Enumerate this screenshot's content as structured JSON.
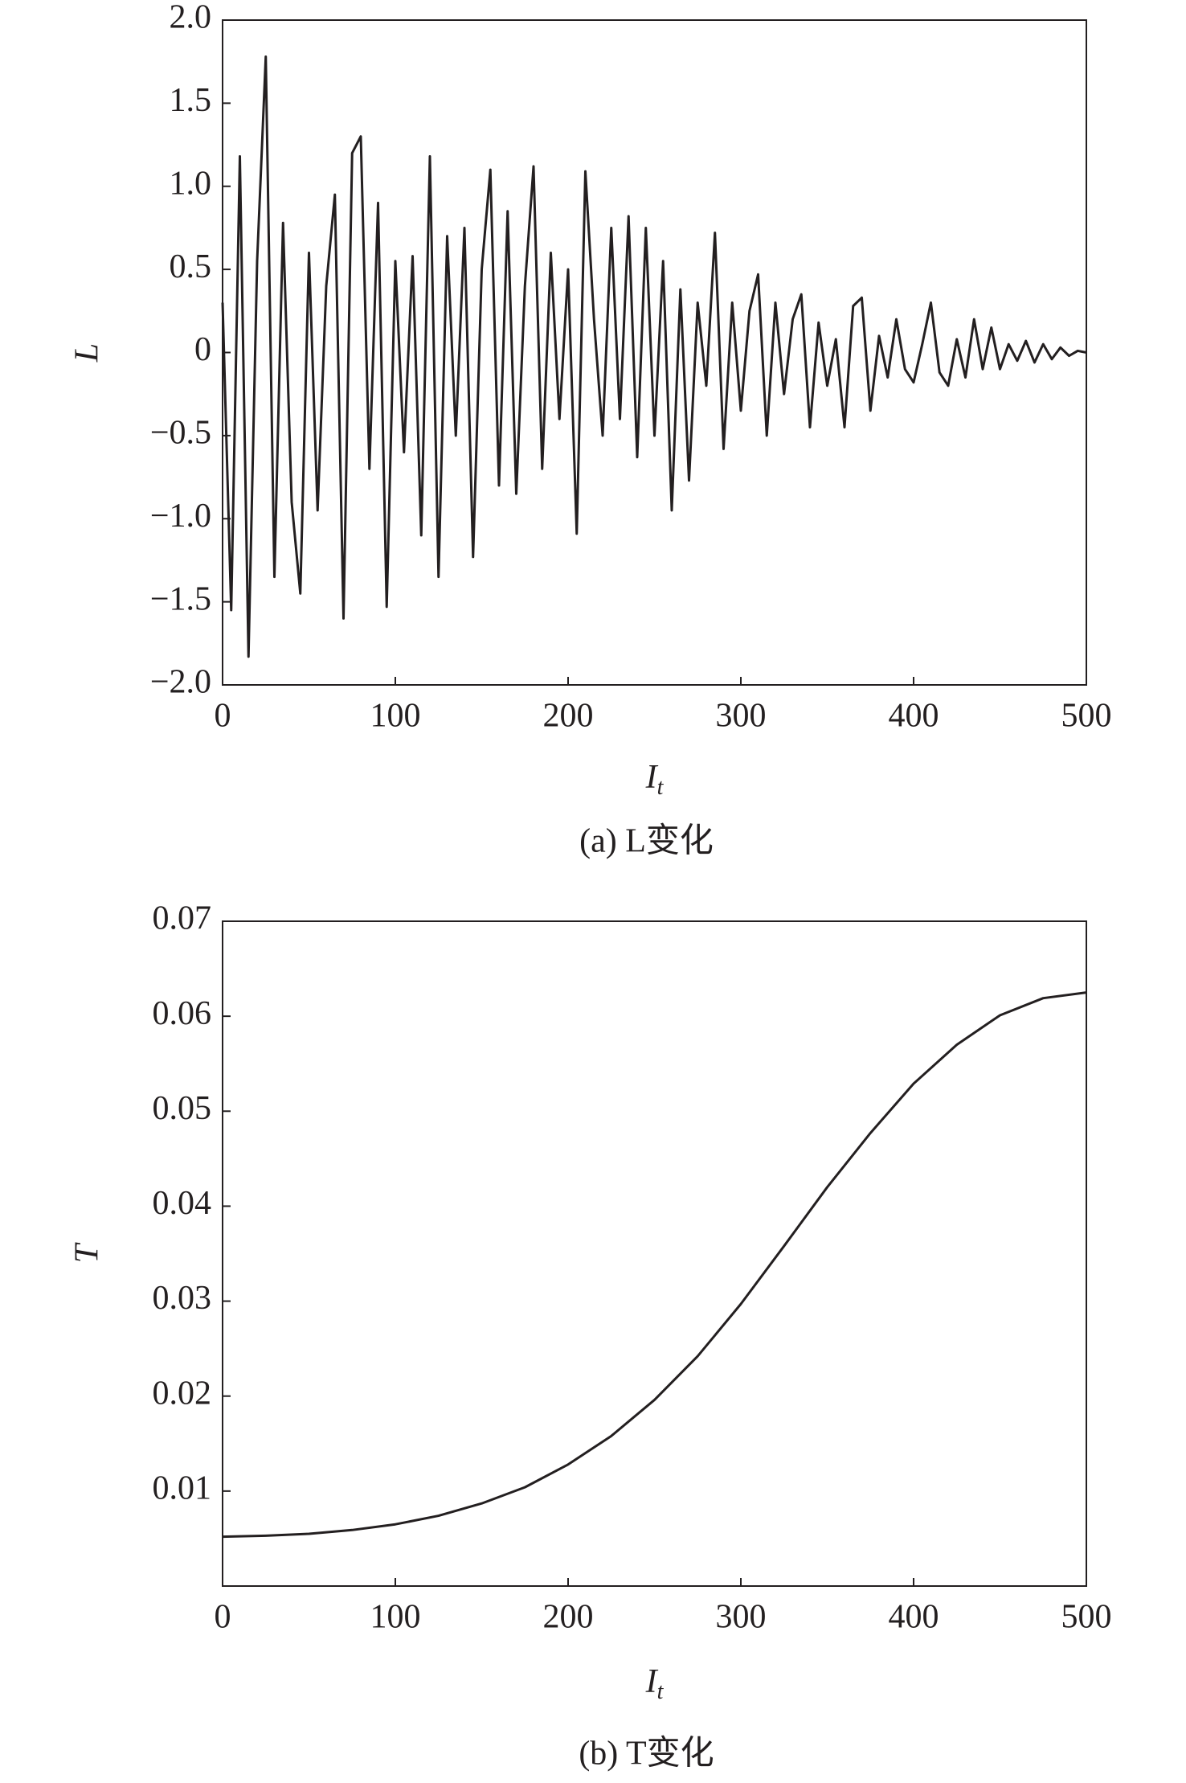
{
  "chart_data": [
    {
      "type": "line",
      "caption": "(a) L变化",
      "ylabel": "L",
      "xlabel": "I",
      "xlabel_sub": "t",
      "color": "#231f20",
      "xlim": [
        0,
        500
      ],
      "xticks": [
        0,
        100,
        200,
        300,
        400,
        500
      ],
      "ylim": [
        -2,
        2
      ],
      "yticks": [
        {
          "value": -2,
          "label": "−2.0"
        },
        {
          "value": -1.5,
          "label": "−1.5"
        },
        {
          "value": -1,
          "label": "−1.0"
        },
        {
          "value": -0.5,
          "label": "−0.5"
        },
        0,
        {
          "value": 0.5,
          "label": "0.5"
        },
        {
          "value": 1,
          "label": "1.0"
        },
        {
          "value": 1.5,
          "label": "1.5"
        },
        {
          "value": 2,
          "label": "2.0"
        }
      ],
      "x": [
        0,
        5,
        10,
        15,
        20,
        25,
        30,
        35,
        40,
        45,
        50,
        55,
        60,
        65,
        70,
        75,
        80,
        85,
        90,
        95,
        100,
        105,
        110,
        115,
        120,
        125,
        130,
        135,
        140,
        145,
        150,
        155,
        160,
        165,
        170,
        175,
        180,
        185,
        190,
        195,
        200,
        205,
        210,
        215,
        220,
        225,
        230,
        235,
        240,
        245,
        250,
        255,
        260,
        265,
        270,
        275,
        280,
        285,
        290,
        295,
        300,
        305,
        310,
        315,
        320,
        325,
        330,
        335,
        340,
        345,
        350,
        355,
        360,
        365,
        370,
        375,
        380,
        385,
        390,
        395,
        400,
        405,
        410,
        415,
        420,
        425,
        430,
        435,
        440,
        445,
        450,
        455,
        460,
        465,
        470,
        475,
        480,
        485,
        490,
        495,
        500
      ],
      "values": [
        0.3,
        -1.55,
        1.18,
        -1.83,
        0.55,
        1.78,
        -1.35,
        0.78,
        -0.9,
        -1.45,
        0.6,
        -0.95,
        0.4,
        0.95,
        -1.6,
        1.2,
        1.3,
        -0.7,
        0.9,
        -1.53,
        0.55,
        -0.6,
        0.58,
        -1.1,
        1.18,
        -1.35,
        0.7,
        -0.5,
        0.75,
        -1.23,
        0.5,
        1.1,
        -0.8,
        0.85,
        -0.85,
        0.4,
        1.12,
        -0.7,
        0.6,
        -0.4,
        0.5,
        -1.09,
        1.09,
        0.2,
        -0.5,
        0.75,
        -0.4,
        0.82,
        -0.63,
        0.75,
        -0.5,
        0.55,
        -0.95,
        0.38,
        -0.77,
        0.3,
        -0.2,
        0.72,
        -0.58,
        0.3,
        -0.35,
        0.25,
        0.47,
        -0.5,
        0.3,
        -0.25,
        0.2,
        0.35,
        -0.45,
        0.18,
        -0.2,
        0.08,
        -0.45,
        0.28,
        0.33,
        -0.35,
        0.1,
        -0.15,
        0.2,
        -0.1,
        -0.18,
        0.05,
        0.3,
        -0.12,
        -0.2,
        0.08,
        -0.15,
        0.2,
        -0.1,
        0.15,
        -0.1,
        0.05,
        -0.05,
        0.07,
        -0.06,
        0.05,
        -0.04,
        0.03,
        -0.02,
        0.01,
        0
      ]
    },
    {
      "type": "line",
      "caption": "(b) T变化",
      "ylabel": "T",
      "xlabel": "I",
      "xlabel_sub": "t",
      "color": "#231f20",
      "xlim": [
        0,
        500
      ],
      "xticks": [
        0,
        100,
        200,
        300,
        400,
        500
      ],
      "ylim": [
        0,
        0.07
      ],
      "yticks": [
        0.01,
        0.02,
        0.03,
        0.04,
        0.05,
        0.06,
        0.07
      ],
      "x": [
        0,
        25,
        50,
        75,
        100,
        125,
        150,
        175,
        200,
        225,
        250,
        275,
        300,
        325,
        350,
        375,
        400,
        425,
        450,
        475,
        500
      ],
      "values": [
        0.0052,
        0.0053,
        0.0055,
        0.0059,
        0.0065,
        0.0074,
        0.0087,
        0.0104,
        0.0128,
        0.0158,
        0.0196,
        0.0242,
        0.0297,
        0.0358,
        0.042,
        0.0477,
        0.0529,
        0.057,
        0.0601,
        0.0619,
        0.0625
      ]
    }
  ]
}
